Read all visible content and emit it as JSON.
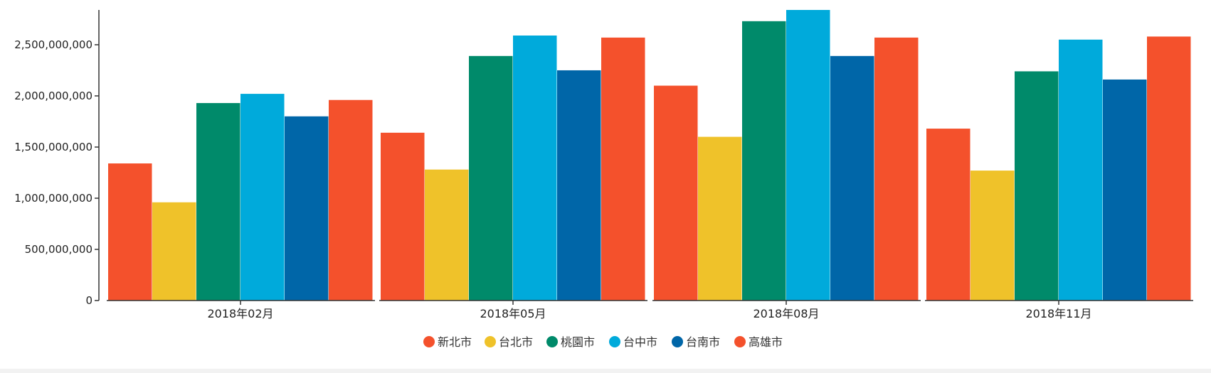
{
  "chart_data": {
    "type": "bar",
    "categories": [
      "2018年02月",
      "2018年05月",
      "2018年08月",
      "2018年11月"
    ],
    "series": [
      {
        "name": "新北市",
        "color": "#f4512c",
        "values": [
          1340000000,
          1640000000,
          2100000000,
          1680000000
        ]
      },
      {
        "name": "台北市",
        "color": "#efc22a",
        "values": [
          960000000,
          1280000000,
          1600000000,
          1270000000
        ]
      },
      {
        "name": "桃園市",
        "color": "#008a6a",
        "values": [
          1930000000,
          2390000000,
          2730000000,
          2240000000
        ]
      },
      {
        "name": "台中市",
        "color": "#00aadb",
        "values": [
          2020000000,
          2590000000,
          2840000000,
          2550000000
        ]
      },
      {
        "name": "台南市",
        "color": "#0066a8",
        "values": [
          1800000000,
          2250000000,
          2390000000,
          2160000000
        ]
      },
      {
        "name": "高雄市",
        "color": "#f4512c",
        "values": [
          1960000000,
          2570000000,
          2570000000,
          2580000000
        ]
      }
    ],
    "yticks": [
      "0",
      "500,000,000",
      "1,000,000,000",
      "1,500,000,000",
      "2,000,000,000",
      "2,500,000,000"
    ],
    "ytick_values": [
      0,
      500000000,
      1000000000,
      1500000000,
      2000000000,
      2500000000
    ],
    "ylim": [
      0,
      2840000000
    ],
    "grid": false,
    "legend_position": "bottom-center",
    "title": "",
    "xlabel": "",
    "ylabel": ""
  }
}
